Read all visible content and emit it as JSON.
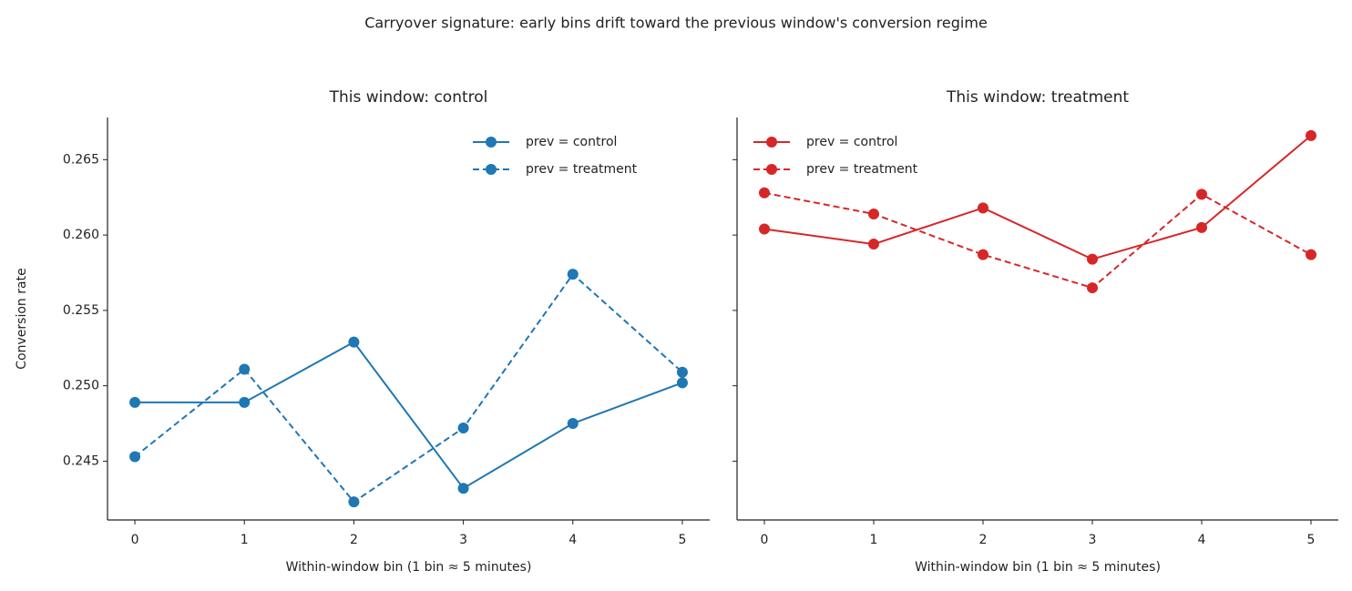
{
  "suptitle": "Carryover signature: early bins drift toward the previous window's conversion regime",
  "chart_data": [
    {
      "type": "line",
      "title": "This window: control",
      "xlabel": "Within-window bin (1 bin ≈ 5 minutes)",
      "ylabel": "Conversion rate",
      "x": [
        0,
        1,
        2,
        3,
        4,
        5
      ],
      "xlim": [
        -0.25,
        5.25
      ],
      "xticks": [
        0,
        1,
        2,
        3,
        4,
        5
      ],
      "ylim": [
        0.2411,
        0.2678
      ],
      "yticks": [
        0.245,
        {
          "value": 0.25,
          "label": "0.250"
        },
        0.255,
        {
          "value": 0.26,
          "label": "0.260"
        },
        0.265
      ],
      "legend": "upper right",
      "series": [
        {
          "name": "prev = control",
          "color": "#1f77b4",
          "linestyle": "solid",
          "values": [
            0.2489,
            0.2489,
            0.2529,
            0.2432,
            0.2475,
            0.2502
          ]
        },
        {
          "name": "prev = treatment",
          "color": "#1f77b4",
          "linestyle": "dashed",
          "values": [
            0.2453,
            0.2511,
            0.2423,
            0.2472,
            0.2574,
            0.2509
          ]
        }
      ]
    },
    {
      "type": "line",
      "title": "This window: treatment",
      "xlabel": "Within-window bin (1 bin ≈ 5 minutes)",
      "x": [
        0,
        1,
        2,
        3,
        4,
        5
      ],
      "xlim": [
        -0.25,
        5.25
      ],
      "xticks": [
        0,
        1,
        2,
        3,
        4,
        5
      ],
      "ylim": [
        0.2411,
        0.2678
      ],
      "yticks": [
        0.245,
        0.25,
        0.255,
        0.26,
        0.265
      ],
      "ytick_labels": false,
      "legend": "upper left",
      "series": [
        {
          "name": "prev = control",
          "color": "#d62728",
          "linestyle": "solid",
          "values": [
            0.2604,
            0.2594,
            0.2618,
            0.2584,
            0.2605,
            0.2666
          ]
        },
        {
          "name": "prev = treatment",
          "color": "#d62728",
          "linestyle": "dashed",
          "values": [
            0.2628,
            0.2614,
            0.2587,
            0.2565,
            0.2627,
            0.2587
          ]
        }
      ]
    }
  ]
}
